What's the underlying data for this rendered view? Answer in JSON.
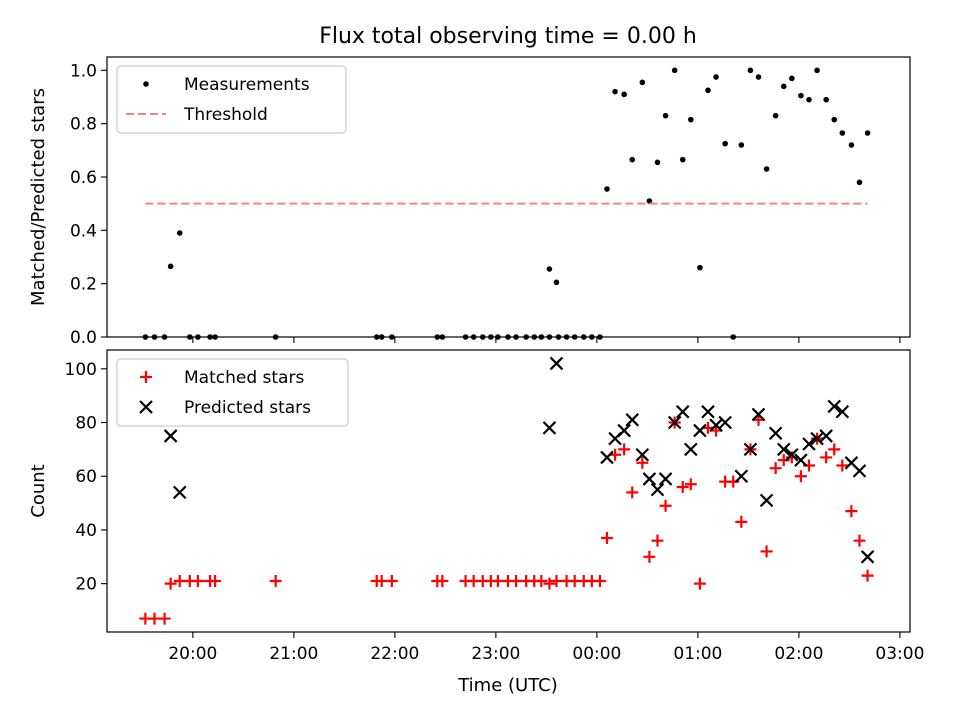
{
  "figure": {
    "title": "Flux total observing time = 0.00 h",
    "xlabel": "Time (UTC)"
  },
  "chart_data": [
    {
      "type": "scatter",
      "title": "Flux total observing time = 0.00 h",
      "xlabel": "",
      "ylabel": "Matched/Predicted stars",
      "x_unit": "hours since 00:00 UTC",
      "xlim": [
        -4.85,
        3.1
      ],
      "ylim": [
        0,
        1.05
      ],
      "y_ticks": [
        0.0,
        0.2,
        0.4,
        0.6,
        0.8,
        1.0
      ],
      "y_tick_labels": [
        "0.0",
        "0.2",
        "0.4",
        "0.6",
        "0.8",
        "1.0"
      ],
      "grid": false,
      "legend_position": "top-left",
      "series": [
        {
          "name": "Measurements",
          "marker": "dot",
          "color": "#000000",
          "points": [
            [
              -4.47,
              0.0
            ],
            [
              -4.38,
              0.0
            ],
            [
              -4.28,
              0.0
            ],
            [
              -4.22,
              0.265
            ],
            [
              -4.13,
              0.39
            ],
            [
              -4.03,
              0.0
            ],
            [
              -3.95,
              0.0
            ],
            [
              -3.83,
              0.0
            ],
            [
              -3.78,
              0.0
            ],
            [
              -3.18,
              0.0
            ],
            [
              -2.18,
              0.0
            ],
            [
              -2.13,
              0.0
            ],
            [
              -2.03,
              0.0
            ],
            [
              -1.58,
              0.0
            ],
            [
              -1.53,
              0.0
            ],
            [
              -1.3,
              0.0
            ],
            [
              -1.22,
              0.0
            ],
            [
              -1.13,
              0.0
            ],
            [
              -1.05,
              0.0
            ],
            [
              -0.98,
              0.0
            ],
            [
              -0.88,
              0.0
            ],
            [
              -0.8,
              0.0
            ],
            [
              -0.7,
              0.0
            ],
            [
              -0.62,
              0.0
            ],
            [
              -0.55,
              0.0
            ],
            [
              -0.47,
              0.0
            ],
            [
              -0.38,
              0.0
            ],
            [
              -0.47,
              0.255
            ],
            [
              -0.4,
              0.205
            ],
            [
              -0.3,
              0.0
            ],
            [
              -0.22,
              0.0
            ],
            [
              -0.13,
              0.0
            ],
            [
              -0.05,
              0.0
            ],
            [
              0.03,
              0.0
            ],
            [
              0.1,
              0.555
            ],
            [
              0.18,
              0.92
            ],
            [
              0.27,
              0.91
            ],
            [
              0.35,
              0.665
            ],
            [
              0.45,
              0.955
            ],
            [
              0.52,
              0.51
            ],
            [
              0.6,
              0.655
            ],
            [
              0.68,
              0.83
            ],
            [
              0.77,
              1.0
            ],
            [
              0.85,
              0.665
            ],
            [
              0.93,
              0.815
            ],
            [
              1.02,
              0.26
            ],
            [
              1.1,
              0.925
            ],
            [
              1.18,
              0.975
            ],
            [
              1.27,
              0.725
            ],
            [
              1.35,
              0.0
            ],
            [
              1.43,
              0.72
            ],
            [
              1.52,
              1.0
            ],
            [
              1.6,
              0.975
            ],
            [
              1.68,
              0.63
            ],
            [
              1.77,
              0.83
            ],
            [
              1.85,
              0.94
            ],
            [
              1.93,
              0.97
            ],
            [
              2.02,
              0.905
            ],
            [
              2.1,
              0.89
            ],
            [
              2.18,
              1.0
            ],
            [
              2.27,
              0.89
            ],
            [
              2.35,
              0.815
            ],
            [
              2.43,
              0.765
            ],
            [
              2.52,
              0.72
            ],
            [
              2.6,
              0.58
            ],
            [
              2.68,
              0.765
            ]
          ]
        },
        {
          "name": "Threshold",
          "style": "dashed",
          "color": "#ff7f7f",
          "x": [
            -4.47,
            2.68
          ],
          "y": [
            0.5,
            0.5
          ]
        }
      ]
    },
    {
      "type": "scatter",
      "title": "",
      "xlabel": "Time (UTC)",
      "ylabel": "Count",
      "x_unit": "hours since 00:00 UTC",
      "xlim": [
        -4.85,
        3.1
      ],
      "ylim": [
        2,
        107
      ],
      "x_ticks": [
        -4,
        -3,
        -2,
        -1,
        0,
        1,
        2,
        3
      ],
      "x_tick_labels": [
        "20:00",
        "21:00",
        "22:00",
        "23:00",
        "00:00",
        "01:00",
        "02:00",
        "03:00"
      ],
      "y_ticks": [
        20,
        40,
        60,
        80,
        100
      ],
      "y_tick_labels": [
        "20",
        "40",
        "60",
        "80",
        "100"
      ],
      "grid": false,
      "legend_position": "top-left",
      "series": [
        {
          "name": "Matched stars",
          "marker": "plus",
          "color": "#ff0000",
          "points": [
            [
              -4.47,
              7
            ],
            [
              -4.38,
              7
            ],
            [
              -4.28,
              7
            ],
            [
              -4.22,
              20
            ],
            [
              -4.13,
              21
            ],
            [
              -4.03,
              21
            ],
            [
              -3.95,
              21
            ],
            [
              -3.83,
              21
            ],
            [
              -3.78,
              21
            ],
            [
              -3.18,
              21
            ],
            [
              -2.18,
              21
            ],
            [
              -2.13,
              21
            ],
            [
              -2.03,
              21
            ],
            [
              -1.58,
              21
            ],
            [
              -1.53,
              21
            ],
            [
              -1.3,
              21
            ],
            [
              -1.22,
              21
            ],
            [
              -1.13,
              21
            ],
            [
              -1.05,
              21
            ],
            [
              -0.98,
              21
            ],
            [
              -0.88,
              21
            ],
            [
              -0.8,
              21
            ],
            [
              -0.7,
              21
            ],
            [
              -0.62,
              21
            ],
            [
              -0.55,
              21
            ],
            [
              -0.47,
              20
            ],
            [
              -0.4,
              21
            ],
            [
              -0.3,
              21
            ],
            [
              -0.22,
              21
            ],
            [
              -0.13,
              21
            ],
            [
              -0.05,
              21
            ],
            [
              0.03,
              21
            ],
            [
              0.1,
              37
            ],
            [
              0.18,
              68
            ],
            [
              0.27,
              70
            ],
            [
              0.35,
              54
            ],
            [
              0.45,
              65
            ],
            [
              0.52,
              30
            ],
            [
              0.6,
              36
            ],
            [
              0.68,
              49
            ],
            [
              0.77,
              80
            ],
            [
              0.85,
              56
            ],
            [
              0.93,
              57
            ],
            [
              1.02,
              20
            ],
            [
              1.1,
              78
            ],
            [
              1.18,
              77
            ],
            [
              1.27,
              58
            ],
            [
              1.35,
              58
            ],
            [
              1.43,
              43
            ],
            [
              1.52,
              70
            ],
            [
              1.6,
              81
            ],
            [
              1.68,
              32
            ],
            [
              1.77,
              63
            ],
            [
              1.85,
              66
            ],
            [
              1.93,
              67
            ],
            [
              2.02,
              60
            ],
            [
              2.1,
              64
            ],
            [
              2.18,
              74
            ],
            [
              2.27,
              67
            ],
            [
              2.35,
              70
            ],
            [
              2.43,
              64
            ],
            [
              2.52,
              47
            ],
            [
              2.6,
              36
            ],
            [
              2.68,
              23
            ]
          ]
        },
        {
          "name": "Predicted stars",
          "marker": "x",
          "color": "#000000",
          "points": [
            [
              -4.22,
              75
            ],
            [
              -4.13,
              54
            ],
            [
              -0.47,
              78
            ],
            [
              -0.4,
              102
            ],
            [
              0.1,
              67
            ],
            [
              0.18,
              74
            ],
            [
              0.27,
              77
            ],
            [
              0.35,
              81
            ],
            [
              0.45,
              68
            ],
            [
              0.52,
              59
            ],
            [
              0.6,
              55
            ],
            [
              0.68,
              59
            ],
            [
              0.77,
              80
            ],
            [
              0.85,
              84
            ],
            [
              0.93,
              70
            ],
            [
              1.02,
              77
            ],
            [
              1.1,
              84
            ],
            [
              1.18,
              79
            ],
            [
              1.27,
              80
            ],
            [
              1.43,
              60
            ],
            [
              1.52,
              70
            ],
            [
              1.6,
              83
            ],
            [
              1.68,
              51
            ],
            [
              1.77,
              76
            ],
            [
              1.85,
              70
            ],
            [
              1.93,
              68
            ],
            [
              2.02,
              66
            ],
            [
              2.1,
              72
            ],
            [
              2.18,
              74
            ],
            [
              2.27,
              75
            ],
            [
              2.35,
              86
            ],
            [
              2.43,
              84
            ],
            [
              2.52,
              65
            ],
            [
              2.6,
              62
            ],
            [
              2.68,
              30
            ]
          ]
        }
      ]
    }
  ]
}
